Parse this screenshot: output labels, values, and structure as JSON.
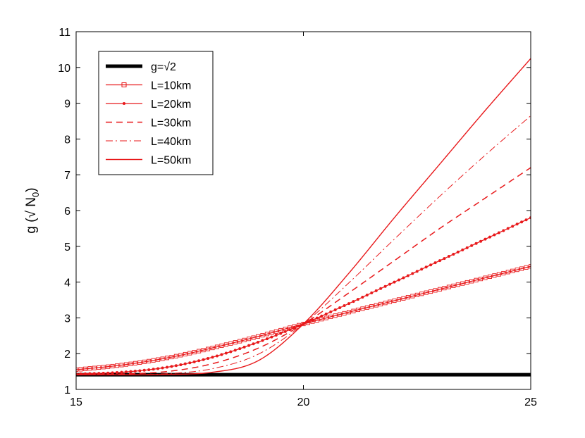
{
  "chart_data": {
    "type": "line",
    "title": "",
    "xlabel": "",
    "ylabel": "g (√ N",
    "ylabel_subscript": "0",
    "ylabel_close": ")",
    "xlim": [
      15,
      25
    ],
    "ylim": [
      1,
      11
    ],
    "xticks": [
      15,
      20,
      25
    ],
    "yticks": [
      1,
      2,
      3,
      4,
      5,
      6,
      7,
      8,
      9,
      10,
      11
    ],
    "grid": false,
    "legend_position": "top-left",
    "series": [
      {
        "name": "g=√2",
        "color": "#000000",
        "style": "thick-solid",
        "x": [
          15,
          25
        ],
        "y": [
          1.41,
          1.41
        ]
      },
      {
        "name": "L=10km",
        "color": "#e8191b",
        "style": "solid-square-markers",
        "x": [
          15,
          16,
          17,
          18,
          19,
          20,
          21,
          22,
          23,
          24,
          25
        ],
        "y": [
          1.55,
          1.68,
          1.88,
          2.16,
          2.48,
          2.83,
          3.16,
          3.48,
          3.8,
          4.12,
          4.44
        ]
      },
      {
        "name": "L=20km",
        "color": "#e8191b",
        "style": "solid-dot-markers",
        "x": [
          15,
          16,
          17,
          18,
          19,
          20,
          21,
          22,
          23,
          24,
          25
        ],
        "y": [
          1.43,
          1.48,
          1.62,
          1.9,
          2.32,
          2.83,
          3.4,
          4.0,
          4.6,
          5.2,
          5.8
        ]
      },
      {
        "name": "L=30km",
        "color": "#e8191b",
        "style": "dashed",
        "x": [
          15,
          16,
          17,
          18,
          19,
          20,
          21,
          22,
          23,
          24,
          25
        ],
        "y": [
          1.41,
          1.43,
          1.5,
          1.72,
          2.15,
          2.83,
          3.7,
          4.6,
          5.5,
          6.35,
          7.2
        ]
      },
      {
        "name": "L=40km",
        "color": "#e8191b",
        "style": "dash-dot",
        "x": [
          15,
          16,
          17,
          18,
          19,
          20,
          21,
          22,
          23,
          24,
          25
        ],
        "y": [
          1.41,
          1.41,
          1.44,
          1.58,
          1.98,
          2.83,
          3.98,
          5.2,
          6.4,
          7.55,
          8.65
        ]
      },
      {
        "name": "L=50km",
        "color": "#e8191b",
        "style": "solid-thin",
        "x": [
          15,
          16,
          17,
          18,
          19,
          20,
          21,
          22,
          23,
          24,
          25
        ],
        "y": [
          1.41,
          1.41,
          1.42,
          1.48,
          1.8,
          2.83,
          4.25,
          5.8,
          7.3,
          8.8,
          10.25
        ]
      }
    ]
  }
}
